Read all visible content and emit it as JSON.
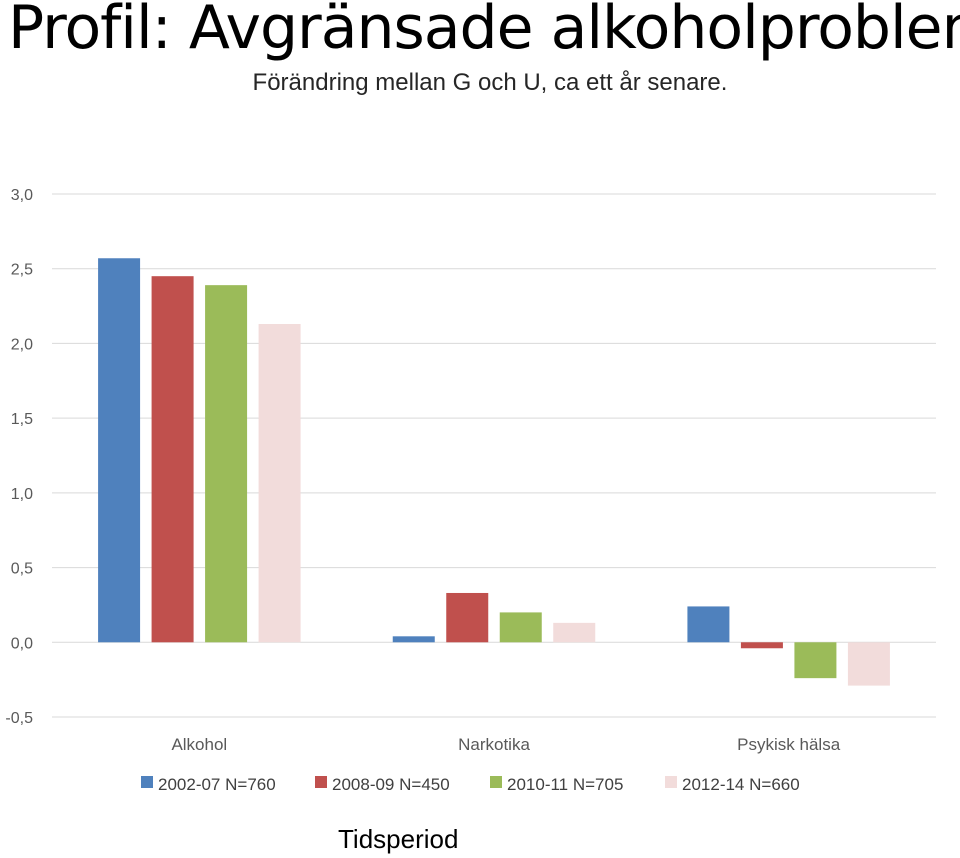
{
  "chart_data": {
    "type": "bar",
    "title": "Profil: Avgränsade alkoholproblem",
    "subtitle": "Förändring mellan G och U, ca ett år senare.",
    "xlabel": "Tidsperiod",
    "ylabel": "",
    "categories": [
      "Alkohol",
      "Narkotika",
      "Psykisk hälsa"
    ],
    "series": [
      {
        "name": "2002-07 N=760",
        "color": "#4F81BD",
        "values": [
          2.57,
          0.04,
          0.24
        ]
      },
      {
        "name": "2008-09 N=450",
        "color": "#C0504D",
        "values": [
          2.45,
          0.33,
          -0.04
        ]
      },
      {
        "name": "2010-11 N=705",
        "color": "#9BBB59",
        "values": [
          2.39,
          0.2,
          -0.24
        ]
      },
      {
        "name": "2012-14 N=660",
        "color": "#F2DCDB",
        "values": [
          2.13,
          0.13,
          -0.29
        ]
      }
    ],
    "ylim": [
      -0.5,
      3.0
    ],
    "yticks": [
      "3,0",
      "2,5",
      "2,0",
      "1,5",
      "1,0",
      "0,5",
      "0,0",
      "-0,5"
    ],
    "ytick_values": [
      3.0,
      2.5,
      2.0,
      1.5,
      1.0,
      0.5,
      0.0,
      -0.5
    ],
    "grid": true,
    "legend": "bottom"
  }
}
